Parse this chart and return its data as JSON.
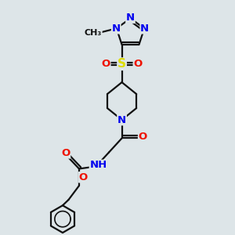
{
  "bg": "#dde5e8",
  "bond_color": "#111111",
  "bond_width": 1.6,
  "dbl_off": 0.055,
  "colors": {
    "C": "#111111",
    "N": "#0000ee",
    "O": "#ee1100",
    "S": "#dddd00",
    "H": "#557777"
  },
  "fs": 9.5,
  "fs_small": 8.0
}
